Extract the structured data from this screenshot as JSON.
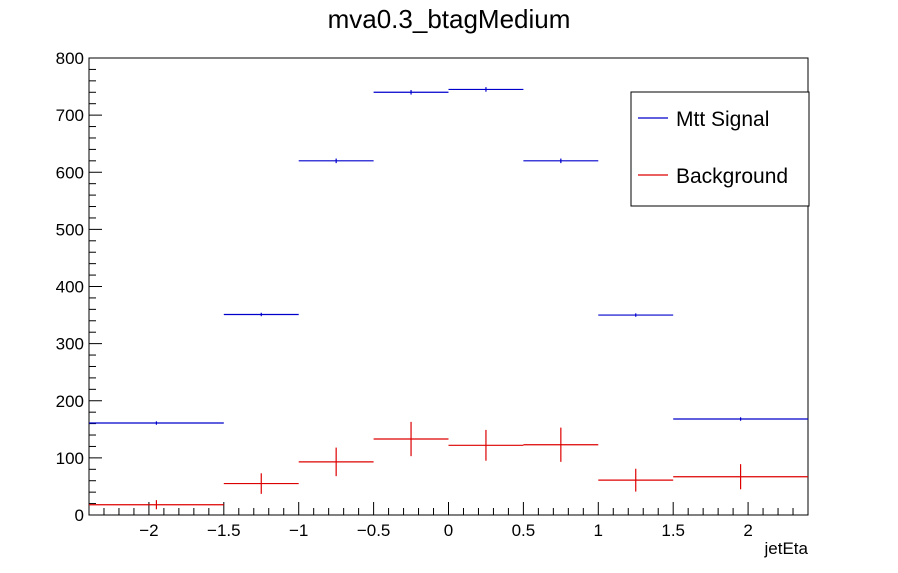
{
  "chart_data": {
    "type": "line",
    "title": "mva0.3_btagMedium",
    "xlabel": "jetEta",
    "ylabel": "",
    "xlim": [
      -2.4,
      2.4
    ],
    "ylim": [
      0,
      800
    ],
    "x_ticks": [
      -2,
      -1.5,
      -1,
      -0.5,
      0,
      0.5,
      1,
      1.5,
      2
    ],
    "x_tick_labels": [
      "−2",
      "−1.5",
      "−1",
      "−0.5",
      "0",
      "0.5",
      "1",
      "1.5",
      "2"
    ],
    "y_ticks": [
      0,
      100,
      200,
      300,
      400,
      500,
      600,
      700,
      800
    ],
    "y_tick_labels": [
      "0",
      "100",
      "200",
      "300",
      "400",
      "500",
      "600",
      "700",
      "800"
    ],
    "grid": false,
    "legend_position": "top-right",
    "bin_edges": [
      -2.4,
      -1.5,
      -1,
      -0.5,
      0,
      0.5,
      1,
      1.5,
      2.4
    ],
    "series": [
      {
        "name": "Mtt Signal",
        "color": "#0000cc",
        "values": [
          161,
          351,
          620,
          740,
          745,
          620,
          350,
          168
        ],
        "errors": [
          3,
          3,
          4,
          4,
          4,
          4,
          3,
          3
        ]
      },
      {
        "name": "Background",
        "color": "#dd0000",
        "values": [
          18,
          55,
          93,
          133,
          122,
          123,
          61,
          67
        ],
        "errors": [
          8,
          18,
          25,
          30,
          27,
          30,
          20,
          22
        ]
      }
    ]
  }
}
